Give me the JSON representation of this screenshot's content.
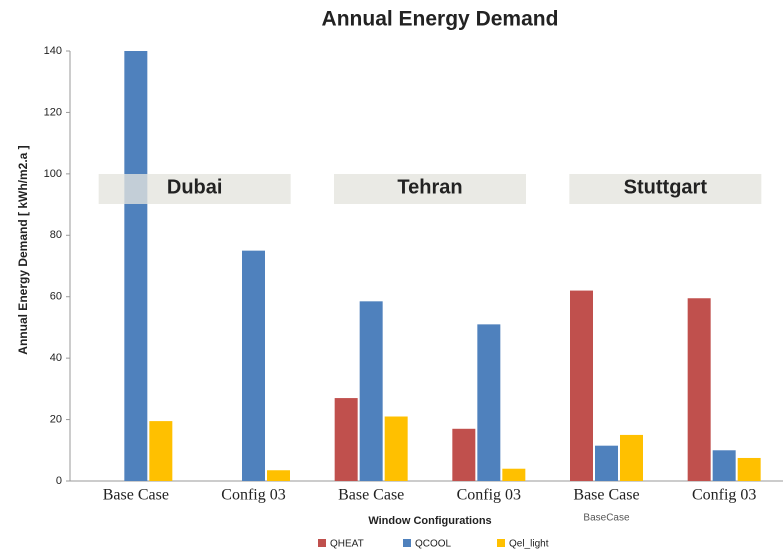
{
  "chart_data": {
    "type": "bar",
    "title": "Annual Energy Demand",
    "x_label": "Window Configurations",
    "y_label": "Annual Energy Demand [ kWh/m2.a ]",
    "categories": [
      "Base Case",
      "Config 03",
      "Base Case",
      "Config 03",
      "Base Case",
      "Config 03"
    ],
    "group_labels": [
      "Dubai",
      "Tehran",
      "Stuttgart"
    ],
    "annotation": "BaseCase",
    "series": [
      {
        "name": "QHEAT",
        "color": "#c0504d",
        "values": [
          0,
          0,
          27,
          17,
          62,
          59.5
        ]
      },
      {
        "name": "QCOOL",
        "color": "#4f81bd",
        "values": [
          140,
          75,
          58.5,
          51,
          11.5,
          10
        ]
      },
      {
        "name": "Qel_light",
        "color": "#ffc000",
        "values": [
          19.5,
          3.5,
          21,
          4,
          15,
          7.5
        ]
      }
    ],
    "ylim": [
      0,
      140
    ],
    "yticks": [
      0,
      20,
      40,
      60,
      80,
      100,
      120,
      140
    ],
    "grid": false,
    "legend": "bottom"
  }
}
